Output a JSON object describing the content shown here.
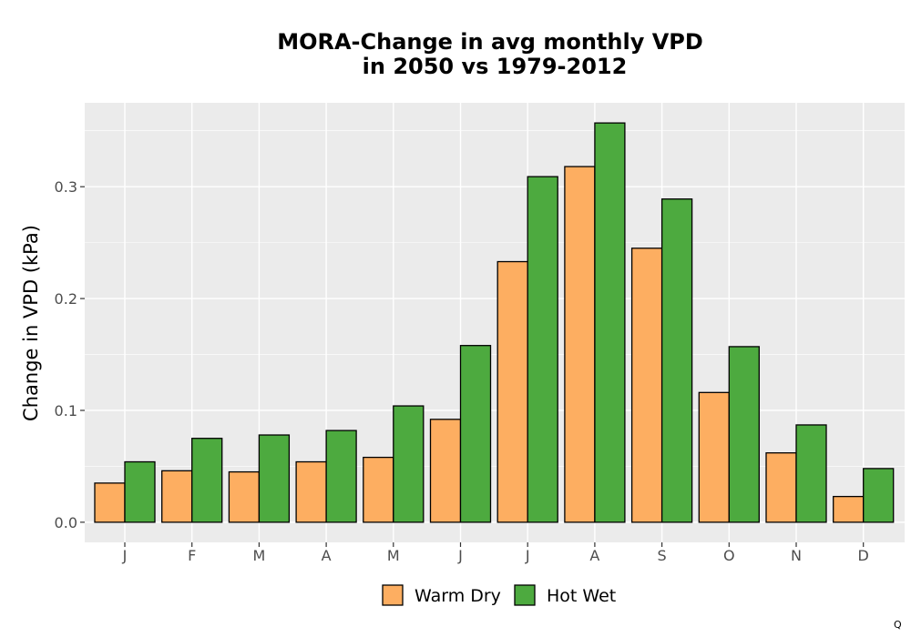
{
  "chart_data": {
    "type": "bar",
    "title_line1": "MORA-Change in avg monthly VPD",
    "title_line2": "in 2050 vs 1979-2012",
    "xlabel": "",
    "ylabel": "Change in VPD (kPa)",
    "categories": [
      "J",
      "F",
      "M",
      "A",
      "M",
      "J",
      "J",
      "A",
      "S",
      "O",
      "N",
      "D"
    ],
    "series": [
      {
        "name": "Warm Dry",
        "color": "#fdae61",
        "values": [
          0.035,
          0.046,
          0.045,
          0.054,
          0.058,
          0.092,
          0.233,
          0.318,
          0.245,
          0.116,
          0.062,
          0.023
        ]
      },
      {
        "name": "Hot Wet",
        "color": "#4daa3f",
        "values": [
          0.054,
          0.075,
          0.078,
          0.082,
          0.104,
          0.158,
          0.309,
          0.357,
          0.289,
          0.157,
          0.087,
          0.048
        ]
      }
    ],
    "ylim": [
      -0.018,
      0.375
    ],
    "yticks": [
      "0.0",
      "0.1",
      "0.2",
      "0.3"
    ],
    "ytick_values": [
      0.0,
      0.1,
      0.2,
      0.3
    ],
    "grid": true,
    "panel_background": "#ebebeb",
    "legend_position": "bottom",
    "corner_mark": "Q"
  }
}
